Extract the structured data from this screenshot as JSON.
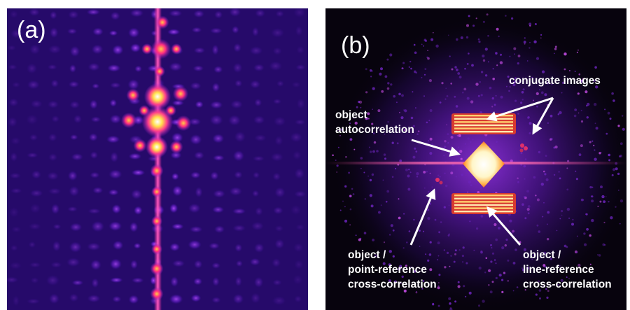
{
  "figure": {
    "panel_a": {
      "label": "(a)",
      "colormap": [
        "#260a6a",
        "#7d1fd8",
        "#ff2fa0",
        "#ffd040",
        "#ffffff"
      ]
    },
    "panel_b": {
      "label": "(b)",
      "colormap": [
        "#07030d",
        "#3a0f7a",
        "#c02fa0",
        "#ff8a30",
        "#ffffff"
      ],
      "annotations": {
        "conjugate_images": "conjugate images",
        "object_autocorrelation": [
          "object",
          "autocorrelation"
        ],
        "point_reference": [
          "object /",
          "point-reference",
          "cross-correlation"
        ],
        "line_reference": [
          "object /",
          "line-reference",
          "cross-correlation"
        ]
      }
    }
  }
}
